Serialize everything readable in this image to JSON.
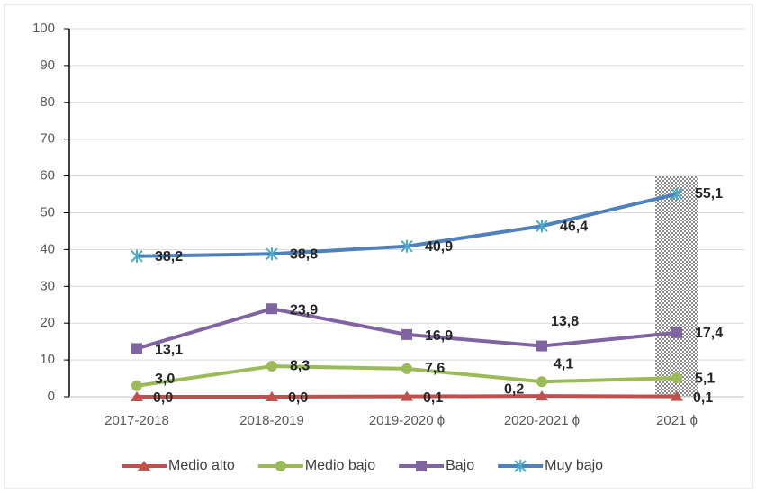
{
  "chart_data": {
    "type": "line",
    "categories": [
      "2017-2018",
      "2018-2019",
      "2019-2020 ϕ",
      "2020-2021 ϕ",
      "2021 ϕ"
    ],
    "series": [
      {
        "name": "Medio alto",
        "color": "#c0504d",
        "marker": "triangle",
        "values": [
          0.0,
          0.0,
          0.1,
          0.2,
          0.1
        ],
        "value_labels": [
          "0,0",
          "0,0",
          "0,1",
          "0,2",
          "0,1"
        ]
      },
      {
        "name": "Medio bajo",
        "color": "#9bbb59",
        "marker": "circle",
        "values": [
          3.0,
          8.3,
          7.6,
          4.1,
          5.1
        ],
        "value_labels": [
          "3,0",
          "8,3",
          "7,6",
          "4,1",
          "5,1"
        ]
      },
      {
        "name": "Bajo",
        "color": "#8064a2",
        "marker": "square",
        "values": [
          13.1,
          23.9,
          16.9,
          13.8,
          17.4
        ],
        "value_labels": [
          "13,1",
          "23,9",
          "16,9",
          "13,8",
          "17,4"
        ]
      },
      {
        "name": "Muy bajo",
        "color": "#4f81bd",
        "marker": "asterisk",
        "values": [
          38.2,
          38.8,
          40.9,
          46.4,
          55.1
        ],
        "value_labels": [
          "38,2",
          "38,8",
          "40,9",
          "46,4",
          "55,1"
        ]
      }
    ],
    "ylim": [
      0,
      100
    ],
    "yticks": [
      0,
      10,
      20,
      30,
      40,
      50,
      60,
      70,
      80,
      90,
      100
    ],
    "grid": true,
    "legend": "bottom"
  }
}
